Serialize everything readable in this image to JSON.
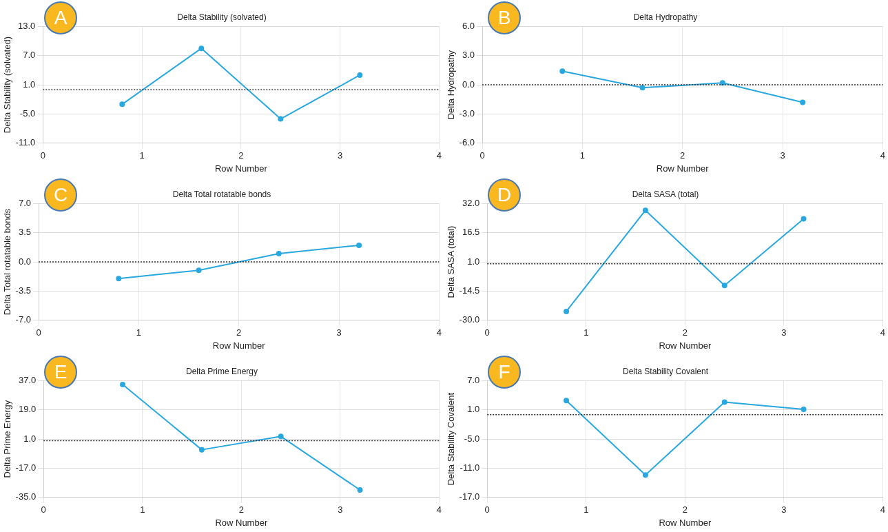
{
  "chart_data": [
    {
      "type": "line",
      "title": "Delta Stability (solvated)",
      "xlabel": "Row Number",
      "ylabel": "Delta Stability (solvated)",
      "annotations": [
        "A"
      ],
      "x": [
        0.8,
        1.6,
        2.4,
        3.2
      ],
      "series": [
        {
          "color": "#29a8e0",
          "values": [
            -3,
            8.5,
            -6,
            3
          ]
        }
      ],
      "xlim": [
        0,
        4
      ],
      "xticks": [
        0,
        1,
        2,
        3,
        4
      ],
      "ylim": [
        -11,
        13
      ],
      "yticks": [
        {
          "value": -11,
          "label": "-11.0"
        },
        {
          "value": -5,
          "label": "-5.0"
        },
        {
          "value": 1,
          "label": "1.0"
        },
        {
          "value": 7,
          "label": "7.0"
        },
        {
          "value": 13,
          "label": "13.0"
        }
      ],
      "grid": true,
      "marker": "circle",
      "ref_lines": [
        {
          "axis": "y",
          "value": 0,
          "color": "#333333",
          "line_style": "dotted"
        }
      ]
    },
    {
      "type": "line",
      "title": "Delta Hydropathy",
      "xlabel": "Row Number",
      "ylabel": "Delta Hydropathy",
      "annotations": [
        "B"
      ],
      "x": [
        0.8,
        1.6,
        2.4,
        3.2
      ],
      "series": [
        {
          "color": "#29a8e0",
          "values": [
            1.4,
            -0.3,
            0.2,
            -1.8
          ]
        }
      ],
      "xlim": [
        0,
        4
      ],
      "xticks": [
        0,
        1,
        2,
        3,
        4
      ],
      "ylim": [
        -6,
        6
      ],
      "yticks": [
        {
          "value": -6,
          "label": "-6.0"
        },
        {
          "value": -3,
          "label": "-3.0"
        },
        {
          "value": 0,
          "label": "0.0"
        },
        {
          "value": 3,
          "label": "3.0"
        },
        {
          "value": 6,
          "label": "6.0"
        }
      ],
      "grid": true,
      "marker": "circle",
      "ref_lines": [
        {
          "axis": "y",
          "value": 0,
          "color": "#333333",
          "line_style": "dotted"
        }
      ]
    },
    {
      "type": "line",
      "title": "Delta Total rotatable bonds",
      "xlabel": "Row Number",
      "ylabel": "Delta Total rotatable bonds",
      "annotations": [
        "C"
      ],
      "x": [
        0.8,
        1.6,
        2.4,
        3.2
      ],
      "series": [
        {
          "color": "#29a8e0",
          "values": [
            -2,
            -1,
            1,
            2
          ]
        }
      ],
      "xlim": [
        0,
        4
      ],
      "xticks": [
        0,
        1,
        2,
        3,
        4
      ],
      "ylim": [
        -7,
        7
      ],
      "yticks": [
        {
          "value": -7,
          "label": "-7.0"
        },
        {
          "value": -3.5,
          "label": "-3.5"
        },
        {
          "value": 0,
          "label": "0.0"
        },
        {
          "value": 3.5,
          "label": "3.5"
        },
        {
          "value": 7,
          "label": "7.0"
        }
      ],
      "grid": true,
      "marker": "circle",
      "ref_lines": [
        {
          "axis": "y",
          "value": 0,
          "color": "#333333",
          "line_style": "dotted"
        }
      ]
    },
    {
      "type": "line",
      "title": "Delta SASA (total)",
      "xlabel": "Row Number",
      "ylabel": "Delta SASA (total)",
      "annotations": [
        "D"
      ],
      "x": [
        0.8,
        1.6,
        2.4,
        3.2
      ],
      "series": [
        {
          "color": "#29a8e0",
          "values": [
            -25.3,
            28.4,
            -11.5,
            23.9
          ]
        }
      ],
      "xlim": [
        0,
        4
      ],
      "xticks": [
        0,
        1,
        2,
        3,
        4
      ],
      "ylim": [
        -30,
        32
      ],
      "yticks": [
        {
          "value": -30,
          "label": "-30.0"
        },
        {
          "value": -14.5,
          "label": "-14.5"
        },
        {
          "value": 1,
          "label": "1.0"
        },
        {
          "value": 16.5,
          "label": "16.5"
        },
        {
          "value": 32,
          "label": "32.0"
        }
      ],
      "grid": true,
      "marker": "circle",
      "ref_lines": [
        {
          "axis": "y",
          "value": 0,
          "color": "#333333",
          "line_style": "dotted"
        }
      ]
    },
    {
      "type": "line",
      "title": "Delta Prime Energy",
      "xlabel": "Row Number",
      "ylabel": "Delta Prime Energy",
      "annotations": [
        "E"
      ],
      "x": [
        0.8,
        1.6,
        2.4,
        3.2
      ],
      "series": [
        {
          "color": "#29a8e0",
          "values": [
            34.6,
            -5.6,
            2.6,
            -30.4
          ]
        }
      ],
      "xlim": [
        0,
        4
      ],
      "xticks": [
        0,
        1,
        2,
        3,
        4
      ],
      "ylim": [
        -35,
        37
      ],
      "yticks": [
        {
          "value": -35,
          "label": "-35.0"
        },
        {
          "value": -17,
          "label": "-17.0"
        },
        {
          "value": 1,
          "label": "1.0"
        },
        {
          "value": 19,
          "label": "19.0"
        },
        {
          "value": 37,
          "label": "37.0"
        }
      ],
      "grid": true,
      "marker": "circle",
      "ref_lines": [
        {
          "axis": "y",
          "value": 0,
          "color": "#333333",
          "line_style": "dotted"
        }
      ]
    },
    {
      "type": "line",
      "title": "Delta Stability Covalent",
      "xlabel": "Row Number",
      "ylabel": "Delta Stability Covalent",
      "annotations": [
        "F"
      ],
      "x": [
        0.8,
        1.6,
        2.4,
        3.2
      ],
      "series": [
        {
          "color": "#29a8e0",
          "values": [
            2.9,
            -12.4,
            2.6,
            1.1
          ]
        }
      ],
      "xlim": [
        0,
        4
      ],
      "xticks": [
        0,
        1,
        2,
        3,
        4
      ],
      "ylim": [
        -17,
        7
      ],
      "yticks": [
        {
          "value": -17,
          "label": "-17.0"
        },
        {
          "value": -11,
          "label": "-11.0"
        },
        {
          "value": -5,
          "label": "-5.0"
        },
        {
          "value": 1,
          "label": "1.0"
        },
        {
          "value": 7,
          "label": "7.0"
        }
      ],
      "grid": true,
      "marker": "circle",
      "ref_lines": [
        {
          "axis": "y",
          "value": 0,
          "color": "#333333",
          "line_style": "dotted"
        }
      ]
    }
  ]
}
